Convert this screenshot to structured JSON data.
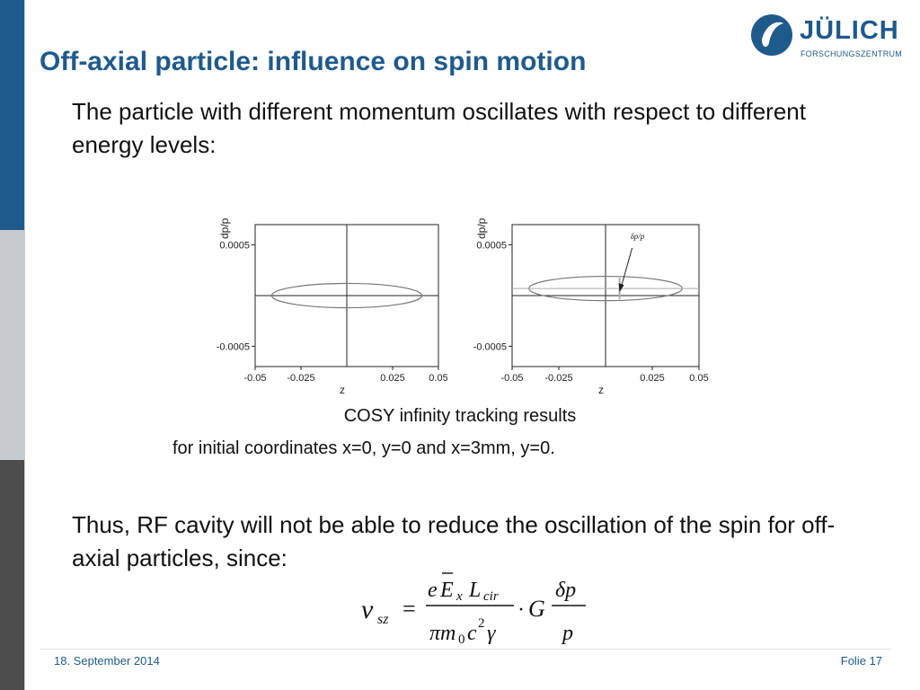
{
  "slide": {
    "title": "Off-axial particle: influence on spin motion",
    "intro": "The particle with different momentum oscillates with respect to different energy levels:",
    "caption_line1": "COSY infinity tracking results",
    "caption_line2": "for initial coordinates x=0, y=0 and x=3mm, y=0.",
    "conclusion": "Thus, RF cavity will not be able to reduce the oscillation of the spin for off-axial particles, since:",
    "footer_date": "18. September 2014",
    "footer_slide": "Folie 17"
  },
  "logo": {
    "name": "JÜLICH",
    "subtitle": "FORSCHUNGSZENTRUM"
  },
  "colors": {
    "title": "#1f5a8c",
    "sidebar_top": "#1f5a8c",
    "sidebar_mid": "#c7cbd0",
    "sidebar_bottom": "#4d4d4d"
  },
  "formula": {
    "lhs": "ν",
    "lhs_sub": "sz",
    "equals": "=",
    "numerator_e": "e",
    "numerator_E": "E",
    "numerator_x": "x",
    "numerator_L": "L",
    "numerator_cir": "cir",
    "denominator": "πm",
    "denominator_0": "0",
    "denominator_c": "c",
    "denominator_2": "2",
    "denominator_gamma": "γ",
    "dot": "·",
    "G": "G",
    "frac2_num": "δp",
    "frac2_den": "p"
  },
  "chart_data": [
    {
      "type": "scatter",
      "title": "",
      "xlabel": "z",
      "ylabel": "dp/p",
      "xlim": [
        -0.05,
        0.05
      ],
      "ylim": [
        -0.0007,
        0.0007
      ],
      "x_ticks": [
        -0.05,
        -0.025,
        0.025,
        0.05
      ],
      "x_tick_labels": [
        "-0.05",
        "-0.025",
        "0.025",
        "0.05"
      ],
      "y_ticks": [
        0.0005,
        -0.0005
      ],
      "y_tick_labels": [
        "0.0005",
        "-0.0005"
      ],
      "ellipse": {
        "cx": 0.0,
        "cy": 0.0,
        "rx": 0.041,
        "ry": 0.00012
      },
      "annotation": ""
    },
    {
      "type": "scatter",
      "title": "",
      "xlabel": "z",
      "ylabel": "dp/p",
      "xlim": [
        -0.05,
        0.05
      ],
      "ylim": [
        -0.0007,
        0.0007
      ],
      "x_ticks": [
        -0.05,
        -0.025,
        0.025,
        0.05
      ],
      "x_tick_labels": [
        "-0.05",
        "-0.025",
        "0.025",
        "0.05"
      ],
      "y_ticks": [
        0.0005,
        -0.0005
      ],
      "y_tick_labels": [
        "0.0005",
        "-0.0005"
      ],
      "ellipse": {
        "cx": 0.0,
        "cy": 7e-05,
        "rx": 0.041,
        "ry": 0.00012
      },
      "annotation": "δp/p"
    }
  ]
}
